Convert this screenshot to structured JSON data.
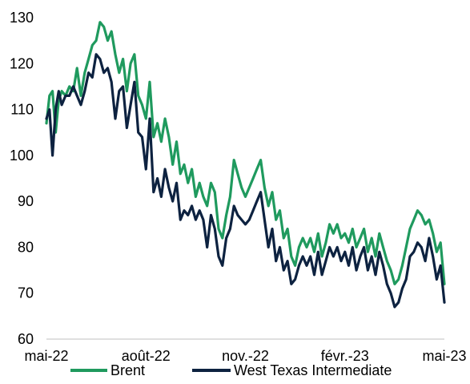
{
  "chart_data": {
    "type": "line",
    "title": "",
    "xlabel": "",
    "ylabel": "",
    "ylim": [
      60,
      130
    ],
    "yticks": [
      60,
      70,
      80,
      90,
      100,
      110,
      120,
      130
    ],
    "xlim": [
      0,
      52
    ],
    "xtick_labels": [
      {
        "x": 0,
        "label": "mai-22"
      },
      {
        "x": 13,
        "label": "août-22"
      },
      {
        "x": 26,
        "label": "nov.-22"
      },
      {
        "x": 39,
        "label": "févr.-23"
      },
      {
        "x": 52,
        "label": "mai-23"
      }
    ],
    "grid": false,
    "legend_position": "bottom",
    "series": [
      {
        "name": "Brent",
        "color": "#1f9a5e",
        "points": [
          [
            0,
            107
          ],
          [
            0.4,
            113
          ],
          [
            0.8,
            114
          ],
          [
            1.2,
            105
          ],
          [
            1.6,
            112
          ],
          [
            2,
            114
          ],
          [
            2.5,
            113
          ],
          [
            3,
            115
          ],
          [
            3.5,
            114
          ],
          [
            4,
            119
          ],
          [
            4.5,
            113
          ],
          [
            5,
            118
          ],
          [
            5.5,
            121
          ],
          [
            6,
            124
          ],
          [
            6.5,
            125
          ],
          [
            7,
            129
          ],
          [
            7.5,
            128
          ],
          [
            8,
            125
          ],
          [
            8.5,
            127
          ],
          [
            9,
            122
          ],
          [
            9.5,
            118
          ],
          [
            10,
            121
          ],
          [
            10.5,
            114
          ],
          [
            11,
            120
          ],
          [
            11.5,
            122
          ],
          [
            12,
            113
          ],
          [
            12.5,
            111
          ],
          [
            13,
            108
          ],
          [
            13.5,
            116
          ],
          [
            14,
            104
          ],
          [
            14.5,
            107
          ],
          [
            15,
            103
          ],
          [
            15.5,
            108
          ],
          [
            16,
            104
          ],
          [
            16.5,
            98
          ],
          [
            17,
            103
          ],
          [
            17.5,
            96
          ],
          [
            18,
            98
          ],
          [
            18.5,
            94
          ],
          [
            19,
            97
          ],
          [
            19.5,
            91
          ],
          [
            20,
            94
          ],
          [
            20.5,
            91
          ],
          [
            21,
            89
          ],
          [
            21.5,
            94
          ],
          [
            22,
            92
          ],
          [
            22.5,
            84
          ],
          [
            23,
            82
          ],
          [
            23.5,
            87
          ],
          [
            24,
            91
          ],
          [
            24.5,
            99
          ],
          [
            25,
            96
          ],
          [
            25.5,
            93
          ],
          [
            26,
            91
          ],
          [
            26.5,
            93
          ],
          [
            27,
            95
          ],
          [
            27.5,
            97
          ],
          [
            28,
            99
          ],
          [
            28.5,
            93
          ],
          [
            29,
            89
          ],
          [
            29.5,
            92
          ],
          [
            30,
            86
          ],
          [
            30.5,
            88
          ],
          [
            31,
            82
          ],
          [
            31.5,
            84
          ],
          [
            32,
            78
          ],
          [
            32.5,
            76
          ],
          [
            33,
            80
          ],
          [
            33.5,
            82
          ],
          [
            34,
            80
          ],
          [
            34.5,
            82
          ],
          [
            35,
            79
          ],
          [
            35.5,
            83
          ],
          [
            36,
            78
          ],
          [
            36.5,
            81
          ],
          [
            37,
            85
          ],
          [
            37.5,
            83
          ],
          [
            38,
            85
          ],
          [
            38.5,
            82
          ],
          [
            39,
            83
          ],
          [
            39.5,
            81
          ],
          [
            40,
            84
          ],
          [
            40.5,
            80
          ],
          [
            41,
            82
          ],
          [
            41.5,
            84
          ],
          [
            42,
            79
          ],
          [
            42.5,
            82
          ],
          [
            43,
            78
          ],
          [
            43.5,
            83
          ],
          [
            44,
            80
          ],
          [
            44.5,
            77
          ],
          [
            45,
            75
          ],
          [
            45.5,
            72
          ],
          [
            46,
            73
          ],
          [
            46.5,
            76
          ],
          [
            47,
            80
          ],
          [
            47.5,
            84
          ],
          [
            48,
            86
          ],
          [
            48.5,
            88
          ],
          [
            49,
            87
          ],
          [
            49.5,
            85
          ],
          [
            50,
            86
          ],
          [
            50.5,
            83
          ],
          [
            51,
            79
          ],
          [
            51.5,
            81
          ],
          [
            52,
            72
          ]
        ]
      },
      {
        "name": "West Texas Intermediate",
        "color": "#0d2240",
        "points": [
          [
            0,
            108
          ],
          [
            0.4,
            110
          ],
          [
            0.8,
            100
          ],
          [
            1.2,
            110
          ],
          [
            1.6,
            114
          ],
          [
            2,
            111
          ],
          [
            2.5,
            113
          ],
          [
            3,
            113
          ],
          [
            3.5,
            115
          ],
          [
            4,
            113
          ],
          [
            4.5,
            111
          ],
          [
            5,
            114
          ],
          [
            5.5,
            118
          ],
          [
            6,
            117
          ],
          [
            6.5,
            122
          ],
          [
            7,
            121
          ],
          [
            7.5,
            118
          ],
          [
            8,
            119
          ],
          [
            8.5,
            116
          ],
          [
            9,
            108
          ],
          [
            9.5,
            114
          ],
          [
            10,
            115
          ],
          [
            10.5,
            106
          ],
          [
            11,
            111
          ],
          [
            11.5,
            116
          ],
          [
            12,
            105
          ],
          [
            12.5,
            104
          ],
          [
            13,
            97
          ],
          [
            13.5,
            108
          ],
          [
            14,
            92
          ],
          [
            14.5,
            95
          ],
          [
            15,
            91
          ],
          [
            15.5,
            97
          ],
          [
            16,
            93
          ],
          [
            16.5,
            90
          ],
          [
            17,
            94
          ],
          [
            17.5,
            86
          ],
          [
            18,
            88
          ],
          [
            18.5,
            87
          ],
          [
            19,
            89
          ],
          [
            19.5,
            86
          ],
          [
            20,
            88
          ],
          [
            20.5,
            86
          ],
          [
            21,
            80
          ],
          [
            21.5,
            87
          ],
          [
            22,
            84
          ],
          [
            22.5,
            78
          ],
          [
            23,
            76
          ],
          [
            23.5,
            82
          ],
          [
            24,
            84
          ],
          [
            24.5,
            89
          ],
          [
            25,
            87
          ],
          [
            25.5,
            86
          ],
          [
            26,
            85
          ],
          [
            26.5,
            86
          ],
          [
            27,
            88
          ],
          [
            27.5,
            90
          ],
          [
            28,
            92
          ],
          [
            28.5,
            86
          ],
          [
            29,
            80
          ],
          [
            29.5,
            84
          ],
          [
            30,
            77
          ],
          [
            30.5,
            80
          ],
          [
            31,
            75
          ],
          [
            31.5,
            77
          ],
          [
            32,
            72
          ],
          [
            32.5,
            73
          ],
          [
            33,
            76
          ],
          [
            33.5,
            78
          ],
          [
            34,
            76
          ],
          [
            34.5,
            78
          ],
          [
            35,
            74
          ],
          [
            35.5,
            79
          ],
          [
            36,
            74
          ],
          [
            36.5,
            77
          ],
          [
            37,
            80
          ],
          [
            37.5,
            78
          ],
          [
            38,
            80
          ],
          [
            38.5,
            77
          ],
          [
            39,
            79
          ],
          [
            39.5,
            76
          ],
          [
            40,
            80
          ],
          [
            40.5,
            75
          ],
          [
            41,
            78
          ],
          [
            41.5,
            80
          ],
          [
            42,
            75
          ],
          [
            42.5,
            78
          ],
          [
            43,
            74
          ],
          [
            43.5,
            79
          ],
          [
            44,
            76
          ],
          [
            44.5,
            72
          ],
          [
            45,
            70
          ],
          [
            45.5,
            67
          ],
          [
            46,
            68
          ],
          [
            46.5,
            71
          ],
          [
            47,
            73
          ],
          [
            47.5,
            78
          ],
          [
            48,
            79
          ],
          [
            48.5,
            81
          ],
          [
            49,
            80
          ],
          [
            49.5,
            77
          ],
          [
            50,
            82
          ],
          [
            50.5,
            78
          ],
          [
            51,
            73
          ],
          [
            51.5,
            76
          ],
          [
            52,
            68
          ]
        ]
      }
    ]
  }
}
